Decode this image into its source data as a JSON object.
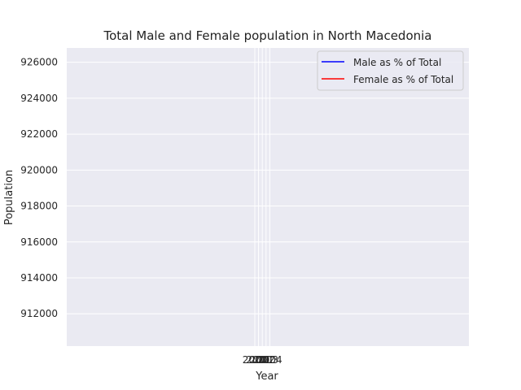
{
  "chart_data": {
    "type": "line",
    "title": "Total Male and Female population in North Macedonia",
    "xlabel": "Year",
    "ylabel": "Population",
    "ylim": [
      910200,
      926800
    ],
    "yticks": [
      912000,
      914000,
      916000,
      918000,
      920000,
      922000,
      924000,
      926000
    ],
    "xticks": [
      "2000",
      "2001",
      "2002",
      "2003",
      "2004"
    ],
    "grid": true,
    "legend_position": "top-right",
    "series": [
      {
        "name": "Male as % of Total",
        "color": "#0000ff",
        "values": []
      },
      {
        "name": "Female as % of Total",
        "color": "#ff0000",
        "values": []
      }
    ]
  },
  "colors": {
    "plot_background": "#eaeaf2",
    "grid": "#ffffff"
  }
}
